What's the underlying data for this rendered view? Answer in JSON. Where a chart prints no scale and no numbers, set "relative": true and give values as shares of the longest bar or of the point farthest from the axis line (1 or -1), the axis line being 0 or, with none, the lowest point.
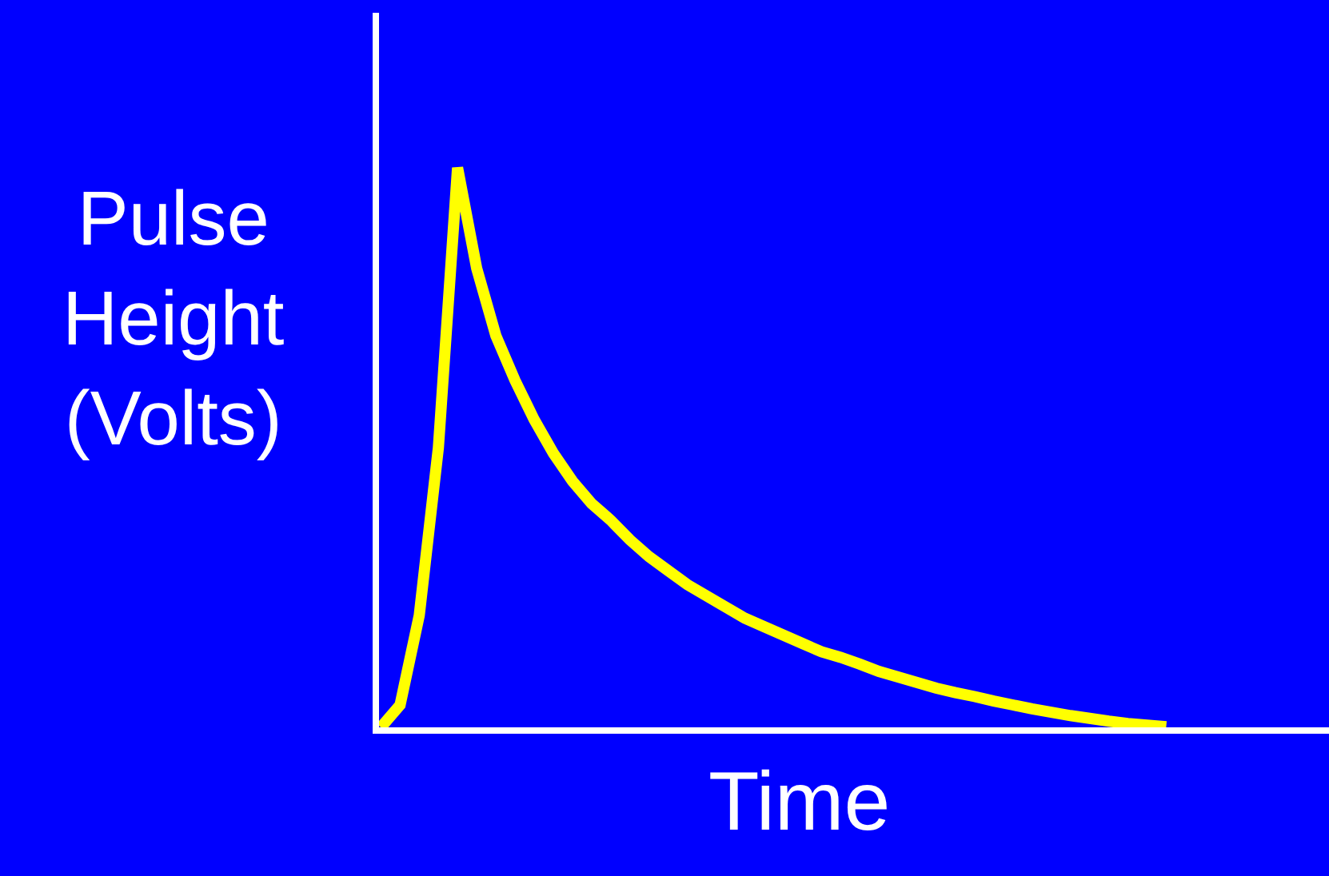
{
  "chart_data": {
    "type": "line",
    "relative": true,
    "xlabel": "Time",
    "ylabel": "Pulse Height (Volts)",
    "categories": [
      null,
      null,
      null,
      null,
      null,
      null,
      null,
      null,
      null,
      null,
      null,
      null,
      null,
      null,
      null,
      null,
      null,
      null,
      null,
      null,
      null,
      null,
      null,
      null,
      null,
      null,
      null,
      null,
      null,
      null,
      null,
      null,
      null,
      null,
      null,
      null,
      null,
      null,
      null,
      null,
      null,
      null
    ],
    "series": [
      {
        "color": "#ffff00",
        "values": [
          0,
          0.04,
          0.2,
          0.5,
          1,
          0.82,
          0.7,
          0.62,
          0.55,
          0.49,
          0.44,
          0.4,
          0.37,
          0.335,
          0.305,
          0.28,
          0.255,
          0.235,
          0.215,
          0.195,
          0.18,
          0.165,
          0.15,
          0.135,
          0.125,
          0.113,
          0.1,
          0.09,
          0.08,
          0.07,
          0.062,
          0.055,
          0.047,
          0.04,
          0.033,
          0.027,
          0.021,
          0.016,
          0.011,
          0.007,
          0.004,
          0.001
        ]
      }
    ],
    "grid": false,
    "legend": false,
    "marker": "none",
    "line_style": "solid"
  }
}
